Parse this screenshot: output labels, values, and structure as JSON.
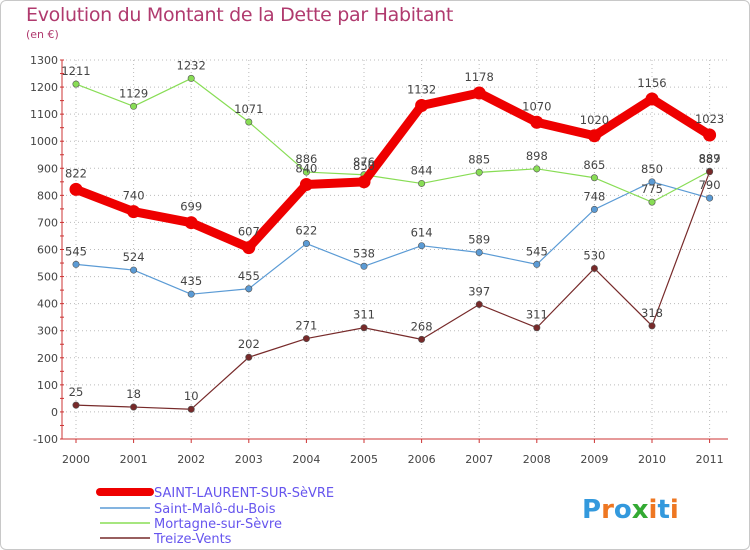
{
  "title": "Evolution du Montant de la Dette par Habitant",
  "subtitle": "(en €)",
  "logo": "Proxiti",
  "chart_data": {
    "type": "line",
    "x": [
      "2000",
      "2001",
      "2002",
      "2003",
      "2004",
      "2005",
      "2006",
      "2007",
      "2008",
      "2009",
      "2010",
      "2011"
    ],
    "ylim": [
      -100,
      1300
    ],
    "yticks": [
      -100,
      0,
      100,
      200,
      300,
      400,
      500,
      600,
      700,
      800,
      900,
      1000,
      1100,
      1200,
      1300
    ],
    "grid": true,
    "legend_position": "bottom-left",
    "series": [
      {
        "name": "SAINT-LAURENT-SUR-SèVRE",
        "color": "#ee0000",
        "values": [
          822,
          740,
          699,
          607,
          840,
          850,
          1132,
          1178,
          1070,
          1020,
          1156,
          1023
        ]
      },
      {
        "name": "Saint-Malô-du-Bois",
        "color": "#5b9bd5",
        "values": [
          545,
          524,
          435,
          455,
          622,
          538,
          614,
          589,
          545,
          748,
          850,
          790
        ]
      },
      {
        "name": "Mortagne-sur-Sèvre",
        "color": "#88dd55",
        "values": [
          1211,
          1129,
          1232,
          1071,
          886,
          876,
          844,
          885,
          898,
          865,
          775,
          889
        ]
      },
      {
        "name": "Treize-Vents",
        "color": "#772a2a",
        "values": [
          25,
          18,
          10,
          202,
          271,
          311,
          268,
          397,
          311,
          530,
          318,
          887
        ]
      }
    ]
  }
}
